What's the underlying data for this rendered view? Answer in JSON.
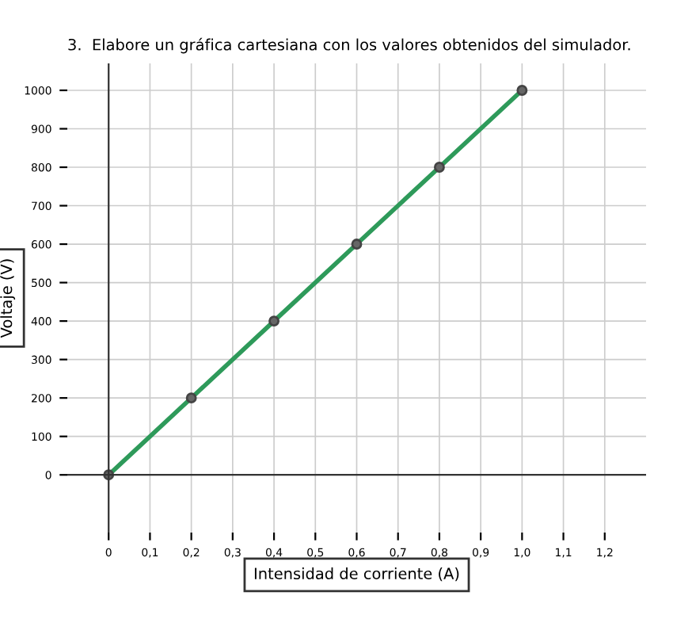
{
  "chart_data": {
    "type": "line",
    "title": "3.  Elabore un gráfica cartesiana con los valores obtenidos del simulador.",
    "xlabel": "Intensidad de corriente (A)",
    "ylabel": "Voltaje (V)",
    "x": [
      0,
      0.2,
      0.4,
      0.6,
      0.8,
      1.0
    ],
    "series": [
      {
        "color": "#2e9a5a",
        "values": [
          0,
          200,
          400,
          600,
          800,
          1000
        ]
      }
    ],
    "marker": "circle",
    "line_style": "solid",
    "grid": true,
    "xlim": [
      -0.1,
      1.3
    ],
    "ylim": [
      -150,
      1070
    ],
    "xticks": [
      0,
      {
        "value": 0.1,
        "label": "0,1"
      },
      {
        "value": 0.2,
        "label": "0,2"
      },
      {
        "value": 0.3,
        "label": "0,3"
      },
      {
        "value": 0.4,
        "label": "0,4"
      },
      {
        "value": 0.5,
        "label": "0,5"
      },
      {
        "value": 0.6,
        "label": "0,6"
      },
      {
        "value": 0.7,
        "label": "0,7"
      },
      {
        "value": 0.8,
        "label": "0,8"
      },
      {
        "value": 0.9,
        "label": "0,9"
      },
      {
        "value": 1.0,
        "label": "1,0"
      },
      {
        "value": 1.1,
        "label": "1,1"
      },
      {
        "value": 1.2,
        "label": "1,2"
      }
    ],
    "yticks": [
      0,
      100,
      200,
      300,
      400,
      500,
      600,
      700,
      800,
      900,
      1000
    ]
  }
}
